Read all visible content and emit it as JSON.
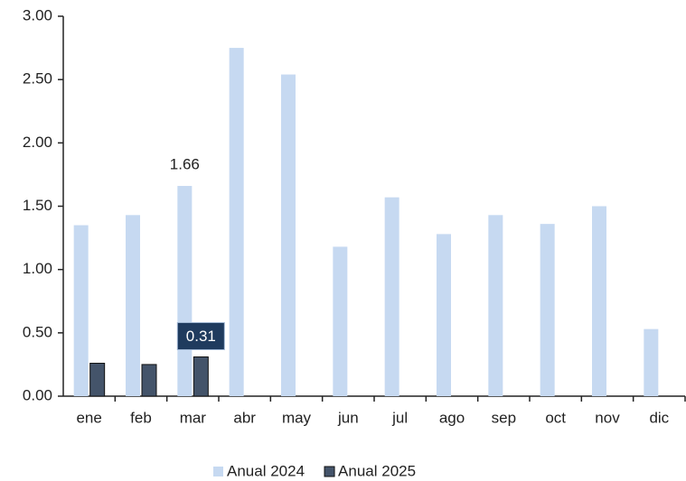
{
  "chart_data": {
    "type": "bar",
    "categories": [
      "ene",
      "feb",
      "mar",
      "abr",
      "may",
      "jun",
      "jul",
      "ago",
      "sep",
      "oct",
      "nov",
      "dic"
    ],
    "series": [
      {
        "name": "Anual 2024",
        "color": "#c6d9f1",
        "values": [
          1.35,
          1.43,
          1.66,
          2.75,
          2.54,
          1.18,
          1.57,
          1.28,
          1.43,
          1.36,
          1.5,
          0.53
        ],
        "value_labels": [
          null,
          null,
          "1.66",
          null,
          null,
          null,
          null,
          null,
          null,
          null,
          null,
          null
        ]
      },
      {
        "name": "Anual 2025",
        "color": "#44546a",
        "values": [
          0.26,
          0.25,
          0.31,
          null,
          null,
          null,
          null,
          null,
          null,
          null,
          null,
          null
        ],
        "value_labels": [
          null,
          null,
          "0.31",
          null,
          null,
          null,
          null,
          null,
          null,
          null,
          null,
          null
        ]
      }
    ],
    "ylim": [
      0,
      3
    ],
    "yticks": [
      {
        "value": 0,
        "label": "0.00"
      },
      {
        "value": 0.5,
        "label": "0.50"
      },
      {
        "value": 1,
        "label": "1.00"
      },
      {
        "value": 1.5,
        "label": "1.50"
      },
      {
        "value": 2,
        "label": "2.00"
      },
      {
        "value": 2.5,
        "label": "2.50"
      },
      {
        "value": 3,
        "label": "3.00"
      }
    ],
    "grid": false,
    "legend": "bottom"
  }
}
